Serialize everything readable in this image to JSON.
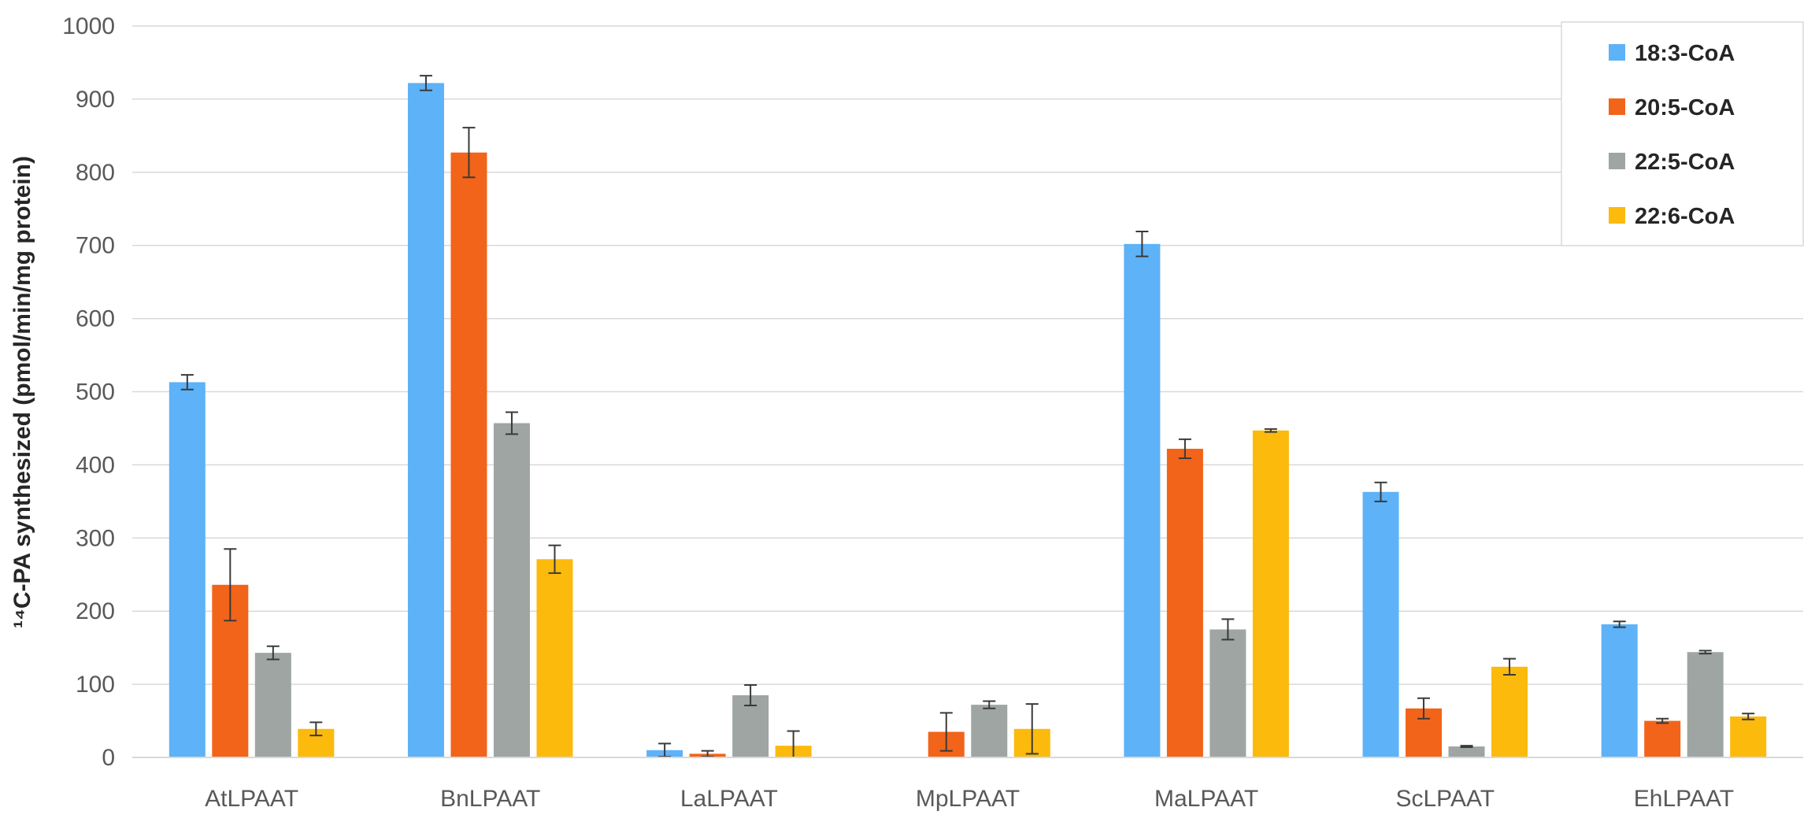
{
  "chart_data": {
    "type": "bar",
    "title": "",
    "ylabel": "¹⁴C-PA synthesized (pmol/min/mg protein)",
    "xlabel": "",
    "ylim": [
      0,
      1000
    ],
    "yticks": [
      0,
      100,
      200,
      300,
      400,
      500,
      600,
      700,
      800,
      900,
      1000
    ],
    "grid": true,
    "legend": "top-right",
    "categories": [
      "AtLPAAT",
      "BnLPAAT",
      "LaLPAAT",
      "MpLPAAT",
      "MaLPAAT",
      "ScLPAAT",
      "EhLPAAT"
    ],
    "series": [
      {
        "name": "18:3-CoA",
        "color": "#5eb2f7",
        "values": [
          513,
          922,
          10,
          0,
          702,
          363,
          182
        ],
        "errors": [
          10,
          10,
          9,
          0,
          17,
          13,
          4
        ]
      },
      {
        "name": "20:5-CoA",
        "color": "#f26419",
        "values": [
          236,
          827,
          5,
          35,
          422,
          67,
          50
        ],
        "errors": [
          49,
          34,
          4,
          26,
          13,
          14,
          3
        ]
      },
      {
        "name": "22:5-CoA",
        "color": "#9ea5a2",
        "values": [
          143,
          457,
          85,
          72,
          175,
          15,
          144
        ],
        "errors": [
          9,
          15,
          14,
          5,
          14,
          1,
          2
        ]
      },
      {
        "name": "22:6-CoA",
        "color": "#fbba0c",
        "values": [
          39,
          271,
          16,
          39,
          447,
          124,
          56
        ],
        "errors": [
          9,
          19,
          20,
          34,
          2,
          11,
          4
        ]
      }
    ]
  }
}
